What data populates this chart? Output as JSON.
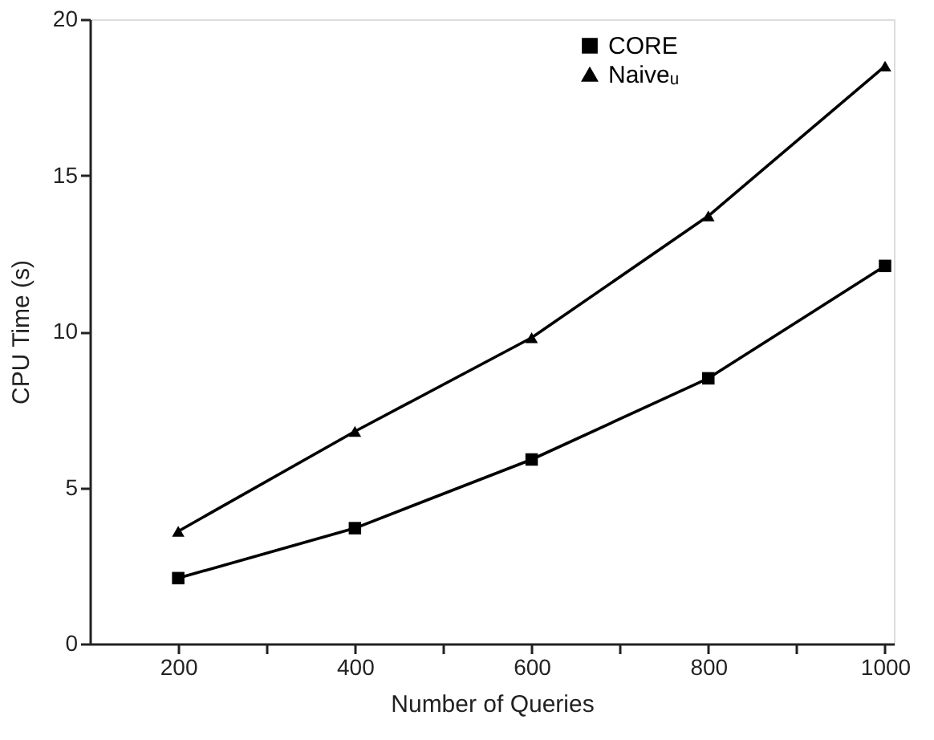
{
  "chart_data": {
    "type": "line",
    "xlabel": "Number of Queries",
    "ylabel": "CPU Time (s)",
    "x": [
      200,
      400,
      600,
      800,
      1000
    ],
    "series": [
      {
        "name": "CORE",
        "color": "#000000",
        "marker": "square",
        "values": [
          2.1,
          3.7,
          5.9,
          8.5,
          12.1
        ]
      },
      {
        "name": "Naiveᵤ",
        "color": "#000000",
        "marker": "triangle",
        "values": [
          3.6,
          6.8,
          9.8,
          13.7,
          18.5
        ]
      }
    ],
    "xlim": [
      100,
      1010
    ],
    "xticks": [
      200,
      {
        "value": 300,
        "label": null
      },
      400,
      {
        "value": 500,
        "label": null
      },
      600,
      {
        "value": 700,
        "label": null
      },
      800,
      {
        "value": 900,
        "label": null
      },
      1000
    ],
    "ylim": [
      0,
      20
    ],
    "yticks": [
      0,
      5,
      10,
      15,
      20
    ],
    "grid": false,
    "legend": "top right",
    "line_style": "solid"
  }
}
